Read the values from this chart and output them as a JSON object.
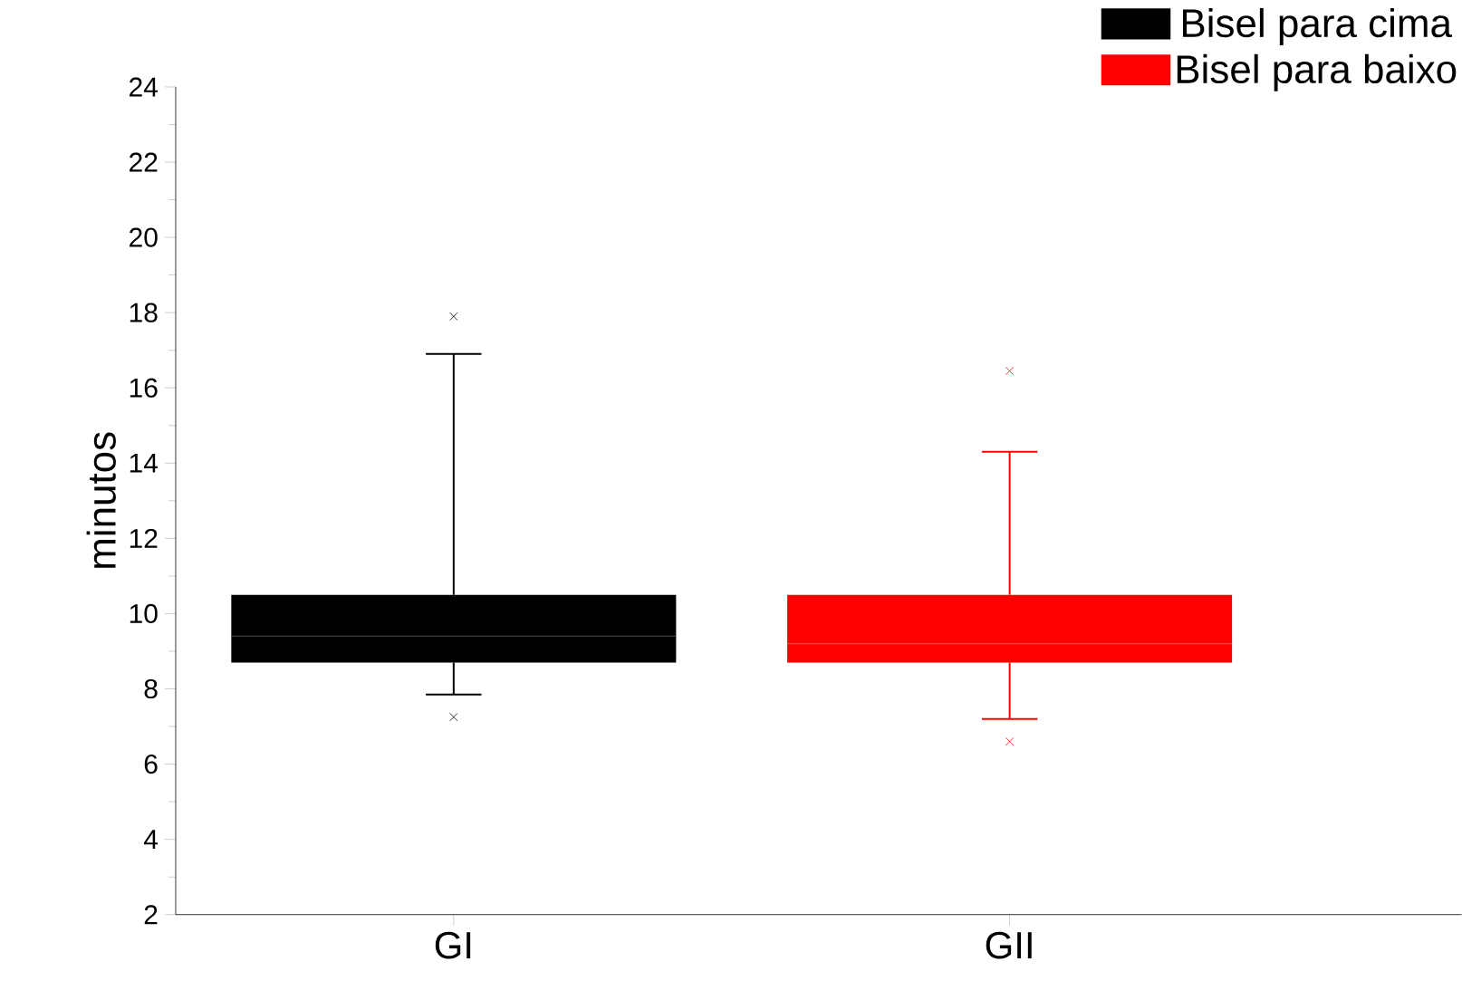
{
  "chart_data": {
    "type": "box",
    "ylabel": "minutos",
    "categories": [
      "GI",
      "GII"
    ],
    "ylim": [
      2,
      24
    ],
    "yticks": [
      2,
      4,
      6,
      8,
      10,
      12,
      14,
      16,
      18,
      20,
      22,
      24
    ],
    "legend": "top right",
    "marker": "cross",
    "grid": false,
    "series": [
      {
        "name": "Bisel para cima",
        "color": "#000000",
        "boxes": [
          {
            "low": 7.85,
            "q1": 8.7,
            "median": 9.4,
            "q3": 10.5,
            "high": 16.9,
            "outliers": [
              17.9,
              7.25
            ]
          },
          null
        ]
      },
      {
        "name": "Bisel para baixo",
        "color": "#ff0000",
        "boxes": [
          null,
          {
            "low": 7.2,
            "q1": 8.7,
            "median": 9.2,
            "q3": 10.5,
            "high": 14.3,
            "outliers": [
              16.45,
              6.6
            ]
          }
        ]
      }
    ]
  }
}
